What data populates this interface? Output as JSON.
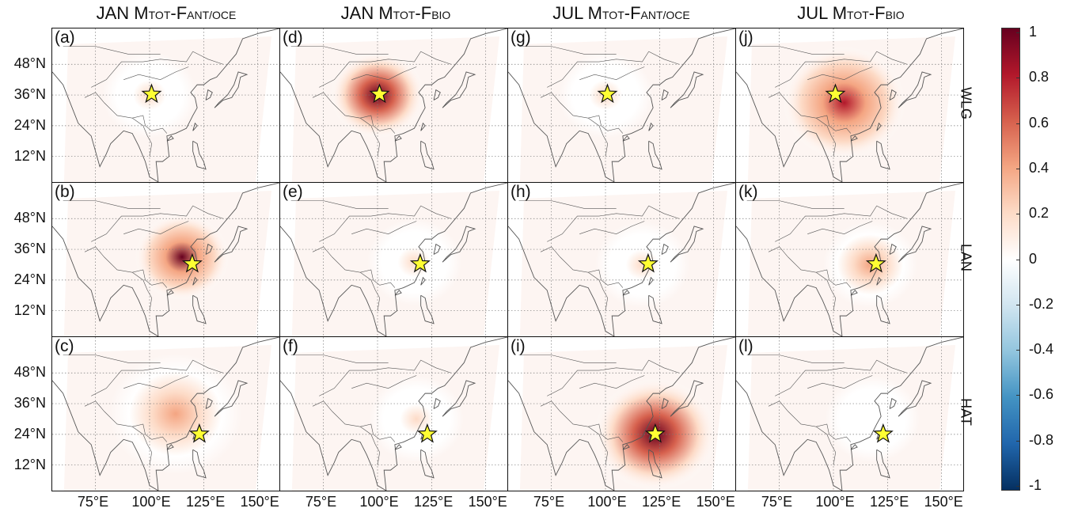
{
  "columns": [
    {
      "prefix": "JAN M",
      "sub1": "TOT",
      "mid": "-F",
      "sub2": "ANT/OCE"
    },
    {
      "prefix": "JAN M",
      "sub1": "TOT",
      "mid": "-F",
      "sub2": "BIO"
    },
    {
      "prefix": "JUL M",
      "sub1": "TOT",
      "mid": "-F",
      "sub2": "ANT/OCE"
    },
    {
      "prefix": "JUL M",
      "sub1": "TOT",
      "mid": "-F",
      "sub2": "BIO"
    }
  ],
  "rows": [
    "WLG",
    "LAN",
    "HAT"
  ],
  "panel_labels": [
    "(a)",
    "(b)",
    "(c)",
    "(d)",
    "(e)",
    "(f)",
    "(g)",
    "(h)",
    "(i)",
    "(j)",
    "(k)",
    "(l)"
  ],
  "lat_labels": [
    "48°N",
    "36°N",
    "24°N",
    "12°N"
  ],
  "lon_labels": [
    "75°E",
    "100°E",
    "125°E",
    "150°E"
  ],
  "colorbar": {
    "ticks": [
      "1",
      "0.8",
      "0.6",
      "0.4",
      "0.2",
      "0",
      "-0.2",
      "-0.4",
      "-0.6",
      "-0.8",
      "-1"
    ],
    "min": -1,
    "max": 1,
    "colors": [
      "#67001f",
      "#b2182b",
      "#d6604d",
      "#f4a582",
      "#fddbc7",
      "#ffffff",
      "#d1e5f0",
      "#92c5de",
      "#4393c3",
      "#2166ac",
      "#053061"
    ]
  },
  "marker_color": "#ffff33",
  "stations": {
    "WLG": {
      "lon": 100.9,
      "lat": 36.3
    },
    "LAN": {
      "lon": 119.7,
      "lat": 30.3
    },
    "HAT": {
      "lon": 123.0,
      "lat": 24.1
    }
  },
  "hotspots": [
    {
      "panel": "(a)",
      "lon": 100,
      "lat": 36,
      "value": 0.15,
      "spread": 1.0
    },
    {
      "panel": "(b)",
      "lon": 115,
      "lat": 33,
      "value": 0.9,
      "spread": 1.0
    },
    {
      "panel": "(c)",
      "lon": 112,
      "lat": 32,
      "value": 0.45,
      "spread": 1.4
    },
    {
      "panel": "(d)",
      "lon": 100,
      "lat": 36,
      "value": 0.95,
      "spread": 1.0
    },
    {
      "panel": "(e)",
      "lon": 117,
      "lat": 31,
      "value": 0.15,
      "spread": 1.0
    },
    {
      "panel": "(f)",
      "lon": 118,
      "lat": 30,
      "value": 0.12,
      "spread": 1.0
    },
    {
      "panel": "(g)",
      "lon": 100,
      "lat": 36,
      "value": 0.12,
      "spread": 1.0
    },
    {
      "panel": "(h)",
      "lon": 117,
      "lat": 30,
      "value": 0.12,
      "spread": 1.0
    },
    {
      "panel": "(i)",
      "lon": 123,
      "lat": 24,
      "value": 1.0,
      "spread": 1.3
    },
    {
      "panel": "(j)",
      "lon": 105,
      "lat": 33,
      "value": 0.8,
      "spread": 1.3
    },
    {
      "panel": "(k)",
      "lon": 117,
      "lat": 30,
      "value": 0.5,
      "spread": 1.0
    },
    {
      "panel": "(l)",
      "lon": 118,
      "lat": 30,
      "value": 0.05,
      "spread": 1.0
    }
  ]
}
